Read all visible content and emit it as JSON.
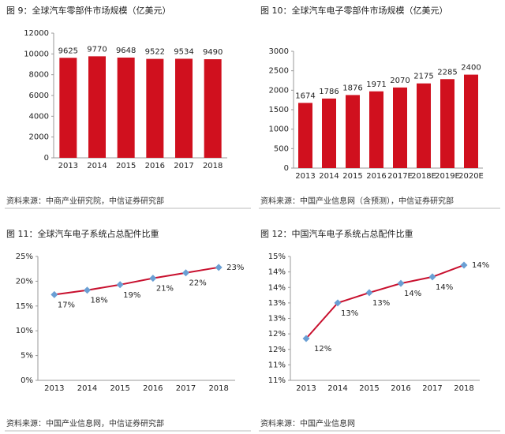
{
  "chart_data": [
    {
      "type": "bar",
      "title": "图 9：全球汽车零部件市场规模（亿美元）",
      "source": "资料来源：中商产业研究院，中信证券研究部",
      "categories": [
        "2013",
        "2014",
        "2015",
        "2016",
        "2017",
        "2018"
      ],
      "values": [
        9625,
        9770,
        9648,
        9522,
        9534,
        9490
      ],
      "color": "#d0101e",
      "ylim": [
        0,
        12000
      ],
      "yticks": [
        0,
        2000,
        4000,
        6000,
        8000,
        10000,
        12000
      ]
    },
    {
      "type": "bar",
      "title": "图 10：全球汽车电子零部件市场规模（亿美元）",
      "source": "资料来源：中国产业信息网（含预测），中信证券研究部",
      "categories": [
        "2013",
        "2014",
        "2015",
        "2016",
        "2017E",
        "2018E",
        "2019E",
        "2020E"
      ],
      "values": [
        1674,
        1786,
        1876,
        1971,
        2070,
        2175,
        2285,
        2400
      ],
      "color": "#d0101e",
      "ylim": [
        0,
        3000
      ],
      "yticks": [
        0,
        500,
        1000,
        1500,
        2000,
        2500,
        3000
      ]
    },
    {
      "type": "line",
      "title": "图 11：全球汽车电子系统占总配件比重",
      "source": "资料来源：中国产业信息网，中信证券研究部",
      "categories": [
        "2013",
        "2014",
        "2015",
        "2016",
        "2017",
        "2018"
      ],
      "values": [
        17.3,
        18.2,
        19.3,
        20.6,
        21.7,
        22.8
      ],
      "value_labels": [
        "17%",
        "18%",
        "19%",
        "21%",
        "22%",
        "23%"
      ],
      "color": "#c8102e",
      "marker_color": "#6a9fd4",
      "ylim": [
        0,
        25
      ],
      "yticks": [
        {
          "value": 0,
          "label": "0%"
        },
        {
          "value": 5,
          "label": "5%"
        },
        {
          "value": 10,
          "label": "10%"
        },
        {
          "value": 15,
          "label": "15%"
        },
        {
          "value": 20,
          "label": "20%"
        },
        {
          "value": 25,
          "label": "25%"
        }
      ]
    },
    {
      "type": "line",
      "title": "图 12：中国汽车电子系统占总配件比重",
      "source": "资料来源：中国产业信息网",
      "categories": [
        "2013",
        "2014",
        "2015",
        "2016",
        "2017",
        "2018"
      ],
      "values": [
        11.85,
        13.0,
        13.33,
        13.63,
        13.84,
        14.22
      ],
      "value_labels": [
        "12%",
        "13%",
        "13%",
        "14%",
        "14%",
        "14%"
      ],
      "color": "#c8102e",
      "marker_color": "#6a9fd4",
      "ylim": [
        10.5,
        14.5
      ],
      "yticks": [
        {
          "value": 10.5,
          "label": "11%"
        },
        {
          "value": 11,
          "label": "11%"
        },
        {
          "value": 11.5,
          "label": "12%"
        },
        {
          "value": 12,
          "label": "12%"
        },
        {
          "value": 12.5,
          "label": "13%"
        },
        {
          "value": 13,
          "label": "13%"
        },
        {
          "value": 13.5,
          "label": "14%"
        },
        {
          "value": 14,
          "label": "14%"
        },
        {
          "value": 14.5,
          "label": "15%"
        }
      ]
    }
  ]
}
